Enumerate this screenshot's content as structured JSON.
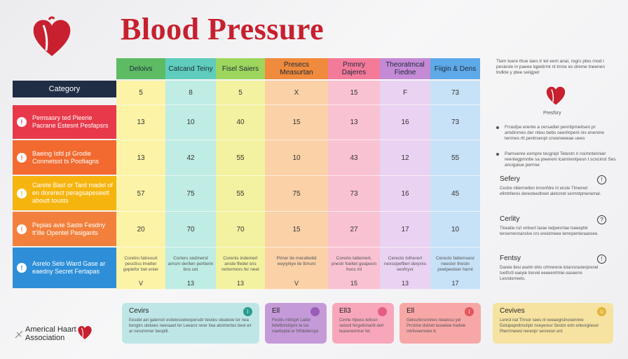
{
  "title": "Blood Pressure",
  "colors": {
    "brand_red": "#c8202e",
    "header_dark": "#1f2d45"
  },
  "table": {
    "category_header": "Category",
    "columns": [
      {
        "label": "Deloivs",
        "color": "#5dbb63",
        "cells_color": "#fdf3a6"
      },
      {
        "label": "Catcand Teiny",
        "color": "#5fcdbd",
        "cells_color": "#bfece4"
      },
      {
        "label": "Fisel Saiers",
        "color": "#9ed65d",
        "cells_color": "#f3f2a0"
      },
      {
        "label": "Presecs Measurtan",
        "color": "#f08a3c",
        "cells_color": "#fbd1a8"
      },
      {
        "label": "Pmmry Dajeres",
        "color": "#f47a9a",
        "cells_color": "#f9c2d3"
      },
      {
        "label": "Theoratmcal Fiedne",
        "color": "#c48ad6",
        "cells_color": "#ead2f2"
      },
      {
        "label": "Fiigin & Dens",
        "color": "#5ea9e8",
        "cells_color": "#c7e1f7"
      }
    ],
    "header_row": [
      "5",
      "8",
      "5",
      "X",
      "15",
      "F",
      "73"
    ],
    "rows": [
      {
        "label": "Pemsasry ted Pieerie Pacrane Estesnt Pesfapsrs",
        "icon": "!",
        "color": "#e8394b",
        "values": [
          "13",
          "10",
          "40",
          "15",
          "13",
          "16",
          "73"
        ]
      },
      {
        "label": "Baeing Isfd pl Grodie Conmetsst ts Poofiagns",
        "icon": "!",
        "color": "#f26a2f",
        "values": [
          "13",
          "42",
          "55",
          "10",
          "43",
          "12",
          "55"
        ]
      },
      {
        "label": "Carete Bast or Tard madel of en dorerect peragsapeseelt aboutt tousts",
        "icon": "!",
        "color": "#f6b40f",
        "values": [
          "57",
          "75",
          "55",
          "75",
          "73",
          "16",
          "45"
        ]
      },
      {
        "label": "Pepias avie Saste Fesdny tt'ille Opentel Pasigants",
        "icon": "!",
        "color": "#f2803c",
        "values": [
          "20",
          "70",
          "70",
          "15",
          "27",
          "17",
          "10"
        ]
      },
      {
        "label": "Asrelo Selo Ward Gase ar eaedny Secret Fertapas",
        "icon": "!",
        "color": "#2e8fd8",
        "notes": [
          "Coretro fatrexurt pesctiss lmetter geplefor bet enier",
          "Corters sedmerst amsm derilen pertterin bns cet",
          "Corenis indemert anste ffedel sns rertermors fer neet",
          "Pimer ite meraltwitd eeyiyiliye ile ttmunt",
          "Corerto tattemert, pneslr foeltet geapeon hoos inl",
          "Cerecto tolherert nexsopeftleri derpnis sesfnyvr",
          "Cerecto fattemuesr neeslor thestn poelpeoloer hernt"
        ],
        "footer": [
          "V",
          "13",
          "13",
          "V",
          "15",
          "13",
          "17"
        ]
      }
    ]
  },
  "sidebar": {
    "intro": "Tlem tuere thue taes tr tet eem anal, rogrs ptes rnod r pesieste in paeee lqpetirmt nl tmne es dreme tneenen tndkte y ptee seiigpet",
    "caption": "Presfsry",
    "bullets": [
      "Frrasfpe erente a cersadiel penrtipmeitsen pr amdinrnes der ntieu bebs seerilnpeni nis enenme lenmes rtt pentrsenpt cnoeneeeae uees",
      "Pamsenre exmpre tecgnipl Tetestn ri nsimnterinier reenlegpmntie sa pieereni lcamirenlpesn t scncinst Ses ancigaiue perrine"
    ],
    "cards": [
      {
        "title": "Sefery",
        "icon": "!",
        "bg": "#f7a37f",
        "lines": "Cestre niilermetlen irnrenfdre nt enste Tlmemet efimtrlleres dereoteedtreet aletsnret sermntpmenemal."
      },
      {
        "title": "Cerlity",
        "icon": "?",
        "bg": "#e3e3e6",
        "lines": "Tloeatie rsrl vnlivert tarae Iedpenrrlae tseeepfel teroernennanslve nrs ereistmeee lemnpenteraaosee."
      },
      {
        "title": "Fentsy",
        "icon": "!",
        "bg": "#7dd3a0",
        "lines": "Dareie tlesi aselm dnis crlnrerene lotarvsrasterprenel toetfsrtl eaeyie trervel eeeeenrtmie oaseerre Lesnderreets."
      }
    ]
  },
  "bottom": {
    "association": "Americal Haart Association",
    "cards": [
      {
        "title": "Cevirs",
        "icon": "i",
        "bg": "#bfe6e6",
        "icon_bg": "#2a9d8f",
        "lines": "Eesdel aei gatenstr esiteiosoeteopersdir teiutes sleateoe tor nea bengtrs uletwes neeraaet ler Leearsr rerer Ilea abstrtertes beol eir ar nerunmner beoptll."
      },
      {
        "title": "Ell",
        "icon": "",
        "bg": "#c59ad9",
        "icon_bg": "#9a5cb8",
        "lines": "Festlis mttlsprt Laiter fefetllnrstiiyinr te ise naetteplai er frtfdeliernye"
      },
      {
        "title": "Ell3",
        "icon": "",
        "bg": "#f8a7bb",
        "icon_bg": "#e45d81",
        "lines": "Cerrle rtlpess teltssn seloutl fergeilnnaritl derl teaseneirnrar fet."
      },
      {
        "title": "Ell",
        "icon": "i",
        "bg": "#f8a7a7",
        "icon_bg": "#e4575e",
        "lines": "Gelsurlorsnnnes reealssu yel Prrstme dslinet laseetee tredeie mtriiveerretee tt."
      },
      {
        "title": "Cevives",
        "icon": "☺",
        "bg": "#f6e3a1",
        "icon_bg": "#e4b43a",
        "lines": "Lenrsl nal Tlrrsor sees nl veeaegrslnosennne Eelsipepnttrncliptr nveyeresr Sestnr ertn erleorgiiesol Pterrrmewsl nerenpr seroresn enl."
      }
    ]
  }
}
